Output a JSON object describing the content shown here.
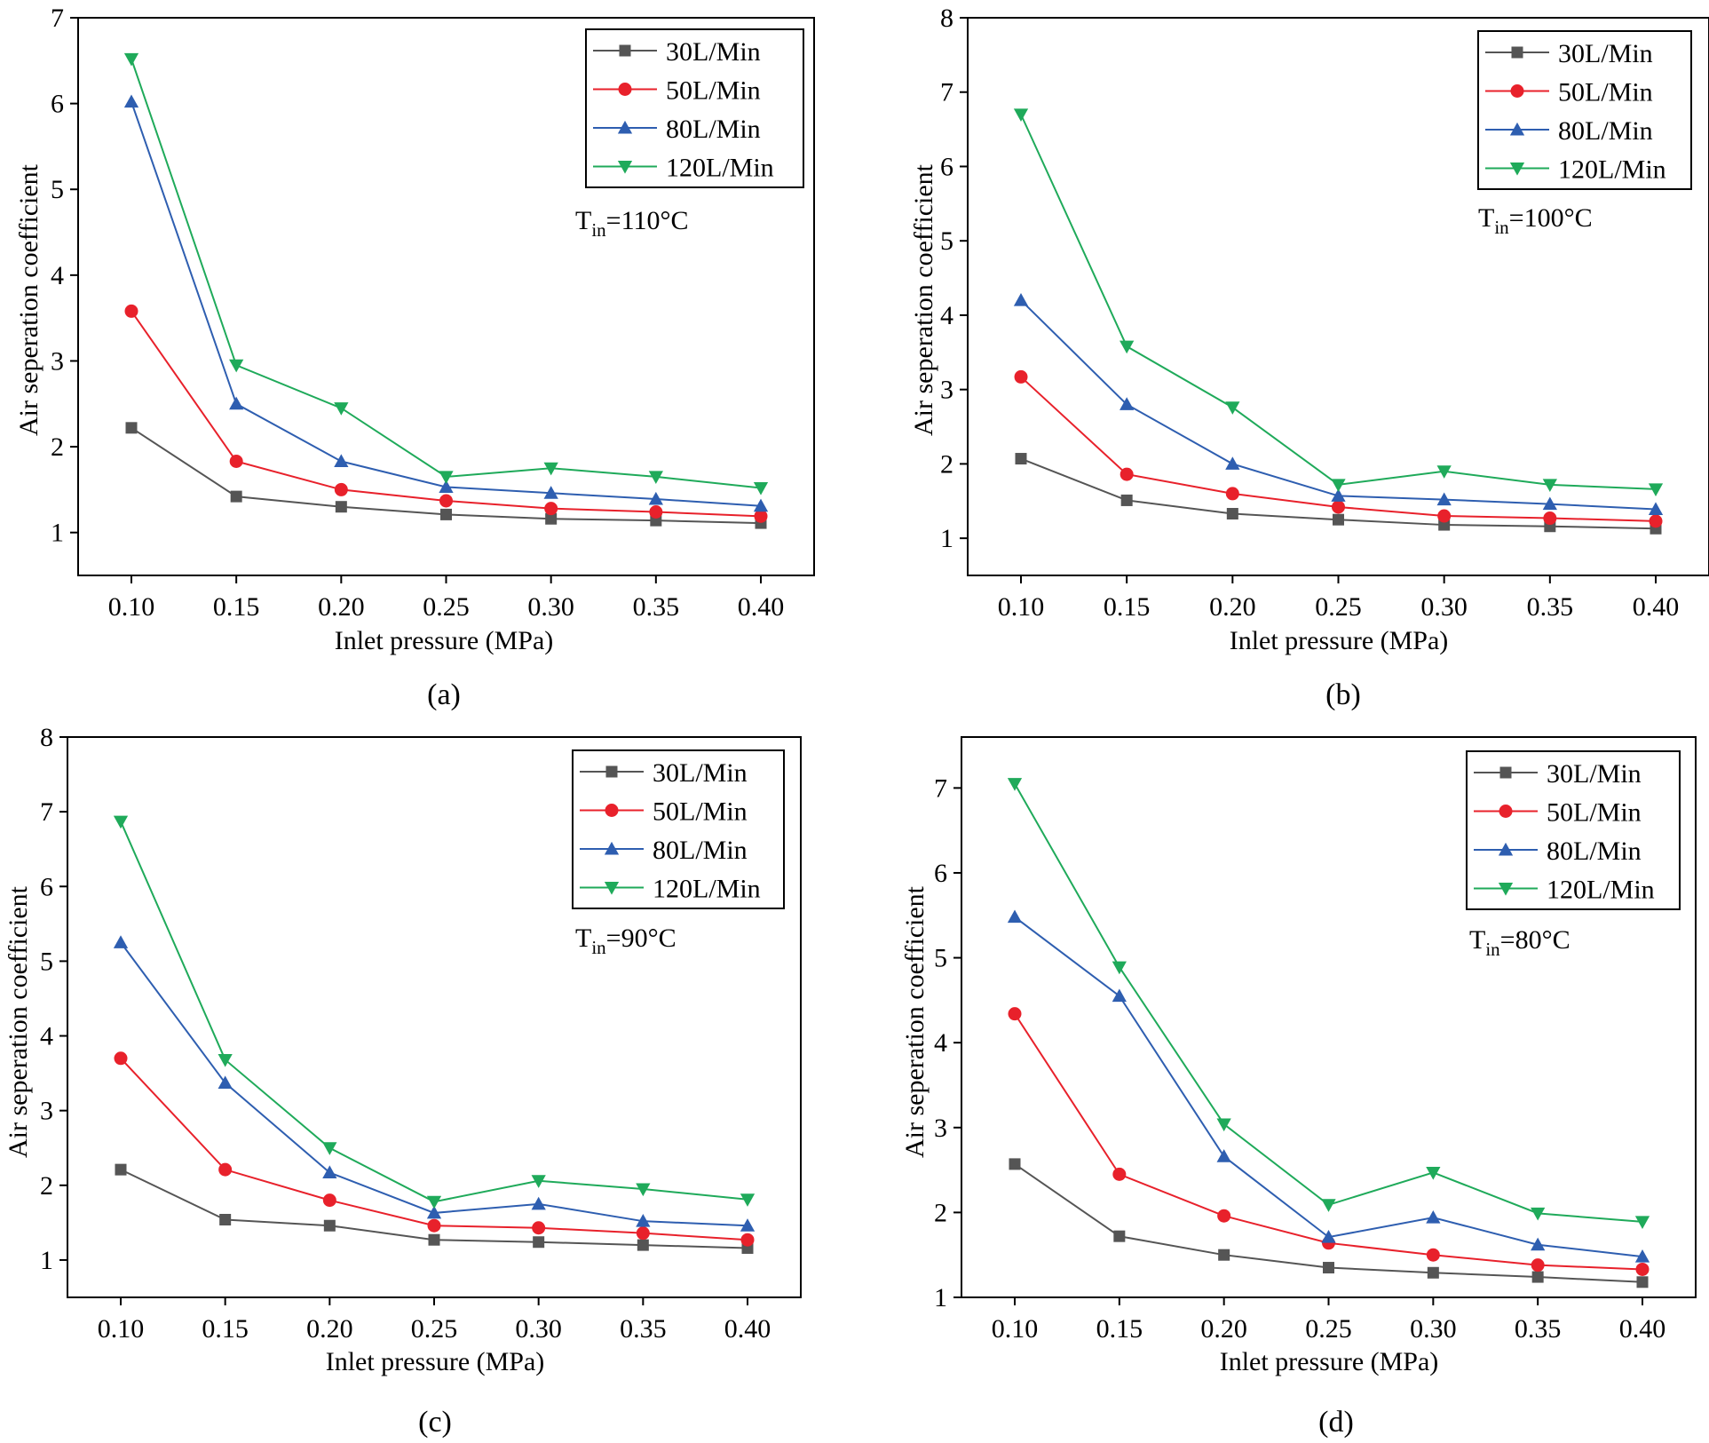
{
  "chart_data": [
    {
      "type": "line",
      "panel_label": "(a)",
      "annotation": {
        "main": "T",
        "sub": "in",
        "rest": "=110°C"
      },
      "xlabel": "Inlet pressure (MPa)",
      "ylabel": "Air seperation coefficient",
      "categories": [
        "0.10",
        "0.15",
        "0.20",
        "0.25",
        "0.30",
        "0.35",
        "0.40"
      ],
      "ylim": [
        0.5,
        7
      ],
      "yticks": [
        "1",
        "2",
        "3",
        "4",
        "5",
        "6",
        "7"
      ],
      "legend_position": "top-right",
      "series": [
        {
          "name": "30L/Min",
          "color": "#555555",
          "marker": "square",
          "values": [
            2.22,
            1.42,
            1.3,
            1.21,
            1.16,
            1.14,
            1.11
          ]
        },
        {
          "name": "50L/Min",
          "color": "#e8212b",
          "marker": "circle",
          "values": [
            3.58,
            1.83,
            1.5,
            1.37,
            1.28,
            1.24,
            1.19
          ]
        },
        {
          "name": "80L/Min",
          "color": "#2e5eb0",
          "marker": "triangle-up",
          "values": [
            6.02,
            2.5,
            1.83,
            1.53,
            1.46,
            1.39,
            1.31
          ]
        },
        {
          "name": "120L/Min",
          "color": "#1faa5a",
          "marker": "triangle-down",
          "values": [
            6.52,
            2.95,
            2.45,
            1.65,
            1.75,
            1.65,
            1.52
          ]
        }
      ]
    },
    {
      "type": "line",
      "panel_label": "(b)",
      "annotation": {
        "main": "T",
        "sub": "in",
        "rest": "=100°C"
      },
      "xlabel": "Inlet pressure (MPa)",
      "ylabel": "Air seperation coefficient",
      "categories": [
        "0.10",
        "0.15",
        "0.20",
        "0.25",
        "0.30",
        "0.35",
        "0.40"
      ],
      "ylim": [
        0.5,
        8
      ],
      "yticks": [
        "1",
        "2",
        "3",
        "4",
        "5",
        "6",
        "7",
        "8"
      ],
      "legend_position": "top-right",
      "series": [
        {
          "name": "30L/Min",
          "color": "#555555",
          "marker": "square",
          "values": [
            2.07,
            1.51,
            1.33,
            1.25,
            1.18,
            1.16,
            1.13
          ]
        },
        {
          "name": "50L/Min",
          "color": "#e8212b",
          "marker": "circle",
          "values": [
            3.17,
            1.86,
            1.6,
            1.42,
            1.3,
            1.27,
            1.23
          ]
        },
        {
          "name": "80L/Min",
          "color": "#2e5eb0",
          "marker": "triangle-up",
          "values": [
            4.2,
            2.8,
            2.0,
            1.57,
            1.52,
            1.46,
            1.39
          ]
        },
        {
          "name": "120L/Min",
          "color": "#1faa5a",
          "marker": "triangle-down",
          "values": [
            6.7,
            3.58,
            2.76,
            1.72,
            1.9,
            1.72,
            1.66
          ]
        }
      ]
    },
    {
      "type": "line",
      "panel_label": "(c)",
      "annotation": {
        "main": "T",
        "sub": "in",
        "rest": "=90°C"
      },
      "xlabel": "Inlet pressure (MPa)",
      "ylabel": "Air seperation coefficient",
      "categories": [
        "0.10",
        "0.15",
        "0.20",
        "0.25",
        "0.30",
        "0.35",
        "0.40"
      ],
      "ylim": [
        0.5,
        8
      ],
      "yticks": [
        "1",
        "2",
        "3",
        "4",
        "5",
        "6",
        "7",
        "8"
      ],
      "legend_position": "top-right",
      "series": [
        {
          "name": "30L/Min",
          "color": "#555555",
          "marker": "square",
          "values": [
            2.21,
            1.54,
            1.46,
            1.27,
            1.24,
            1.2,
            1.16
          ]
        },
        {
          "name": "50L/Min",
          "color": "#e8212b",
          "marker": "circle",
          "values": [
            3.7,
            2.21,
            1.8,
            1.46,
            1.43,
            1.36,
            1.27
          ]
        },
        {
          "name": "80L/Min",
          "color": "#2e5eb0",
          "marker": "triangle-up",
          "values": [
            5.25,
            3.37,
            2.17,
            1.63,
            1.75,
            1.52,
            1.46
          ]
        },
        {
          "name": "120L/Min",
          "color": "#1faa5a",
          "marker": "triangle-down",
          "values": [
            6.87,
            3.68,
            2.5,
            1.78,
            2.06,
            1.95,
            1.81
          ]
        }
      ]
    },
    {
      "type": "line",
      "panel_label": "(d)",
      "annotation": {
        "main": "T",
        "sub": "in",
        "rest": "=80°C"
      },
      "xlabel": "Inlet pressure (MPa)",
      "ylabel": "Air seperation coefficient",
      "categories": [
        "0.10",
        "0.15",
        "0.20",
        "0.25",
        "0.30",
        "0.35",
        "0.40"
      ],
      "ylim": [
        1,
        7.6
      ],
      "yticks": [
        "1",
        "2",
        "3",
        "4",
        "5",
        "6",
        "7"
      ],
      "legend_position": "top-right",
      "series": [
        {
          "name": "30L/Min",
          "color": "#555555",
          "marker": "square",
          "values": [
            2.57,
            1.72,
            1.5,
            1.35,
            1.29,
            1.24,
            1.18
          ]
        },
        {
          "name": "50L/Min",
          "color": "#e8212b",
          "marker": "circle",
          "values": [
            4.34,
            2.45,
            1.96,
            1.64,
            1.5,
            1.38,
            1.33
          ]
        },
        {
          "name": "80L/Min",
          "color": "#2e5eb0",
          "marker": "triangle-up",
          "values": [
            5.48,
            4.55,
            2.66,
            1.71,
            1.94,
            1.62,
            1.48
          ]
        },
        {
          "name": "120L/Min",
          "color": "#1faa5a",
          "marker": "triangle-down",
          "values": [
            7.05,
            4.89,
            3.04,
            2.09,
            2.47,
            1.99,
            1.89
          ]
        }
      ]
    }
  ]
}
